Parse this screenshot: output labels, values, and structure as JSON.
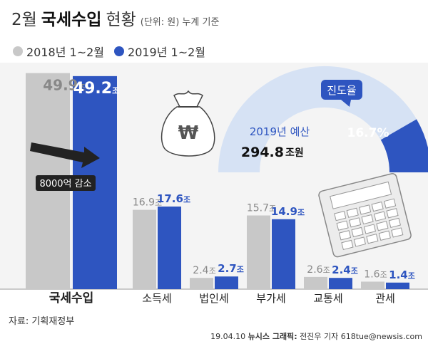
{
  "title": {
    "month": "2월",
    "main": "국세수입",
    "suffix": "현황",
    "unit": "(단위: 원) 누계 기준"
  },
  "legend": [
    {
      "name": "2018년 1~2월",
      "color": "#c8c8c8"
    },
    {
      "name": "2019년 1~2월",
      "color": "#2e55c0"
    }
  ],
  "colors": {
    "series2018": "#c8c8c8",
    "series2019": "#2e55c0",
    "arc_bg": "#d6e2f4",
    "arc_fill": "#2e55c0",
    "badge": "#2e55c0"
  },
  "gauge": {
    "badge_label": "진도율",
    "percent_label": "16.7%",
    "progress": 0.167,
    "budget_label": "2019년 예산",
    "budget_value": "294.8",
    "budget_unit": "조원"
  },
  "annotation": "8000억 감소",
  "chart_data": {
    "type": "bar",
    "unit": "조",
    "categories": [
      "국세수입",
      "소득세",
      "법인세",
      "부가세",
      "교통세",
      "관세"
    ],
    "series": [
      {
        "name": "2018년 1~2월",
        "values": [
          49.9,
          16.9,
          2.4,
          15.7,
          2.6,
          1.6
        ]
      },
      {
        "name": "2019년 1~2월",
        "values": [
          49.2,
          17.6,
          2.7,
          14.9,
          2.4,
          1.4
        ]
      }
    ]
  },
  "source": "자료: 기획재정부",
  "credit": {
    "date": "19.04.10",
    "agency": "뉴시스 그래픽:",
    "author": "전진우 기자 618tue@newsis.com"
  }
}
